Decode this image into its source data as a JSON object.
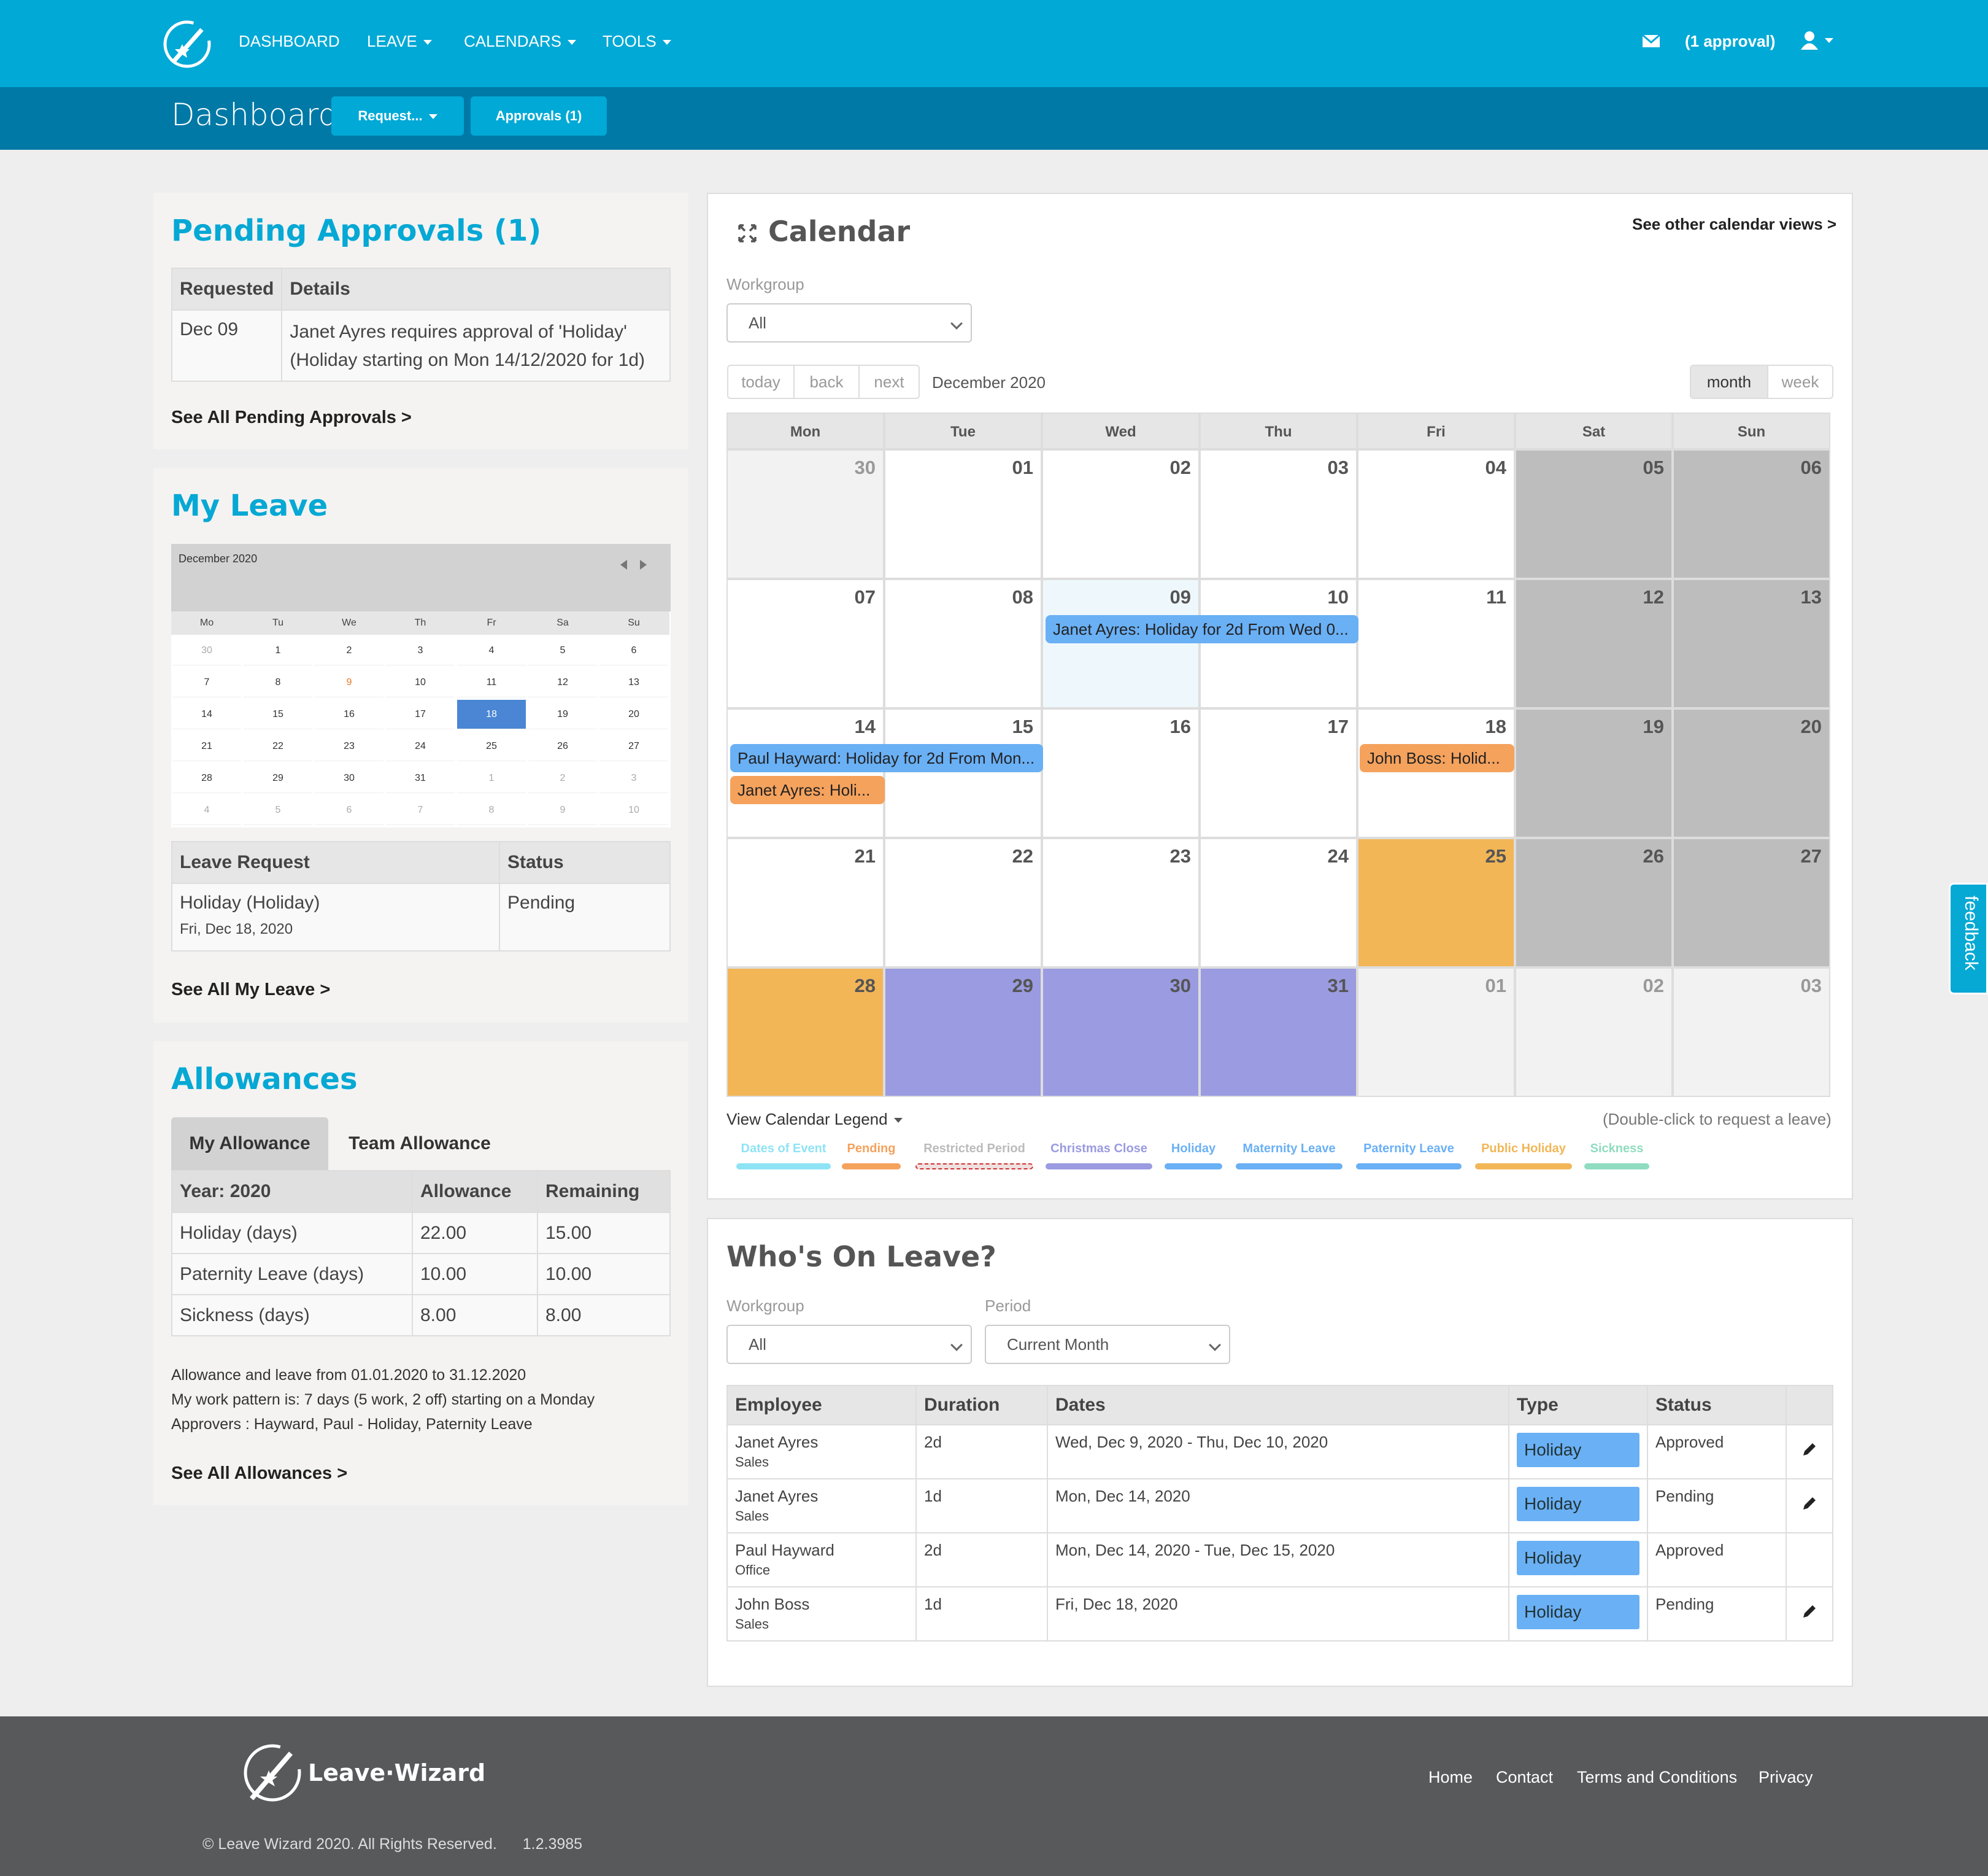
{
  "nav": {
    "dashboard": "DASHBOARD",
    "leave": "LEAVE",
    "calendars": "CALENDARS",
    "tools": "TOOLS",
    "approvals_count": "(1 approval)"
  },
  "subnav": {
    "title": "Dashboard",
    "request_btn": "Request...",
    "approvals_btn": "Approvals (1)"
  },
  "pending": {
    "title": "Pending Approvals (1)",
    "headers": [
      "Requested",
      "Details"
    ],
    "rows": [
      {
        "requested": "Dec 09",
        "details1": "Janet Ayres requires approval of 'Holiday'",
        "details2": "(Holiday starting on Mon 14/12/2020 for 1d)"
      }
    ],
    "link": "See All Pending Approvals >"
  },
  "myleave": {
    "title": "My Leave",
    "mini_month": "December 2020",
    "mini_days": [
      "Mo",
      "Tu",
      "We",
      "Th",
      "Fr",
      "Sa",
      "Su"
    ],
    "mini_weeks": [
      [
        "30",
        "1",
        "2",
        "3",
        "4",
        "5",
        "6"
      ],
      [
        "7",
        "8",
        "9",
        "10",
        "11",
        "12",
        "13"
      ],
      [
        "14",
        "15",
        "16",
        "17",
        "18",
        "19",
        "20"
      ],
      [
        "21",
        "22",
        "23",
        "24",
        "25",
        "26",
        "27"
      ],
      [
        "28",
        "29",
        "30",
        "31",
        "1",
        "2",
        "3"
      ],
      [
        "4",
        "5",
        "6",
        "7",
        "8",
        "9",
        "10"
      ]
    ],
    "headers": [
      "Leave Request",
      "Status"
    ],
    "request": "Holiday (Holiday)",
    "request_date": "Fri, Dec 18, 2020",
    "status": "Pending",
    "link": "See All My Leave >"
  },
  "allowances": {
    "title": "Allowances",
    "tab_my": "My Allowance",
    "tab_team": "Team Allowance",
    "headers": [
      "Year: 2020",
      "Allowance",
      "Remaining"
    ],
    "rows": [
      [
        "Holiday (days)",
        "22.00",
        "15.00"
      ],
      [
        "Paternity Leave (days)",
        "10.00",
        "10.00"
      ],
      [
        "Sickness (days)",
        "8.00",
        "8.00"
      ]
    ],
    "note1": "Allowance and leave from 01.01.2020 to 31.12.2020",
    "note2": "My work pattern is: 7 days (5 work, 2 off) starting on a Monday",
    "note3": "Approvers : Hayward, Paul - Holiday, Paternity Leave",
    "link": "See All Allowances >"
  },
  "calendar": {
    "title": "Calendar",
    "other_views": "See other calendar views >",
    "workgroup_label": "Workgroup",
    "workgroup_value": "All",
    "btn_today": "today",
    "btn_back": "back",
    "btn_next": "next",
    "month_label": "December 2020",
    "view_month": "month",
    "view_week": "week",
    "days": [
      "Mon",
      "Tue",
      "Wed",
      "Thu",
      "Fri",
      "Sat",
      "Sun"
    ],
    "weeks": [
      [
        "30",
        "01",
        "02",
        "03",
        "04",
        "05",
        "06"
      ],
      [
        "07",
        "08",
        "09",
        "10",
        "11",
        "12",
        "13"
      ],
      [
        "14",
        "15",
        "16",
        "17",
        "18",
        "19",
        "20"
      ],
      [
        "21",
        "22",
        "23",
        "24",
        "25",
        "26",
        "27"
      ],
      [
        "28",
        "29",
        "30",
        "31",
        "01",
        "02",
        "03"
      ]
    ],
    "events": {
      "e1": "Janet Ayres: Holiday for 2d From Wed 0...",
      "e2": "Paul Hayward: Holiday for 2d From Mon...",
      "e3": "Janet Ayres: Holi...",
      "e4": "John Boss: Holid..."
    },
    "legend_toggle": "View Calendar Legend",
    "hint": "(Double-click to request a leave)",
    "legend": [
      {
        "label": "Dates of Event",
        "color": "#8ee3f5"
      },
      {
        "label": "Pending",
        "color": "#f5a25d"
      },
      {
        "label": "Restricted Period",
        "color": "#dddddd"
      },
      {
        "label": "Christmas Close",
        "color": "#9a9be0"
      },
      {
        "label": "Holiday",
        "color": "#6ab0f5"
      },
      {
        "label": "Maternity Leave",
        "color": "#6ab0f5"
      },
      {
        "label": "Paternity Leave",
        "color": "#6ab0f5"
      },
      {
        "label": "Public Holiday",
        "color": "#f2b657"
      },
      {
        "label": "Sickness",
        "color": "#8fdcc0"
      }
    ]
  },
  "whos": {
    "title": "Who's On Leave?",
    "workgroup_label": "Workgroup",
    "workgroup_value": "All",
    "period_label": "Period",
    "period_value": "Current Month",
    "headers": [
      "Employee",
      "Duration",
      "Dates",
      "Type",
      "Status"
    ],
    "rows": [
      {
        "name": "Janet Ayres",
        "dept": "Sales",
        "duration": "2d",
        "dates": "Wed, Dec 9, 2020 - Thu, Dec 10, 2020",
        "type": "Holiday",
        "status": "Approved"
      },
      {
        "name": "Janet Ayres",
        "dept": "Sales",
        "duration": "1d",
        "dates": "Mon, Dec 14, 2020",
        "type": "Holiday",
        "status": "Pending"
      },
      {
        "name": "Paul Hayward",
        "dept": "Office",
        "duration": "2d",
        "dates": "Mon, Dec 14, 2020 - Tue, Dec 15, 2020",
        "type": "Holiday",
        "status": "Approved"
      },
      {
        "name": "John Boss",
        "dept": "Sales",
        "duration": "1d",
        "dates": "Fri, Dec 18, 2020",
        "type": "Holiday",
        "status": "Pending"
      }
    ]
  },
  "feedback": "feedback",
  "footer": {
    "brand": "Leave",
    "brand2": "Wizard",
    "links": [
      "Home",
      "Contact",
      "Terms and Conditions",
      "Privacy"
    ],
    "copyright": "© Leave Wizard 2020. All Rights Reserved.",
    "version": "1.2.3985"
  }
}
